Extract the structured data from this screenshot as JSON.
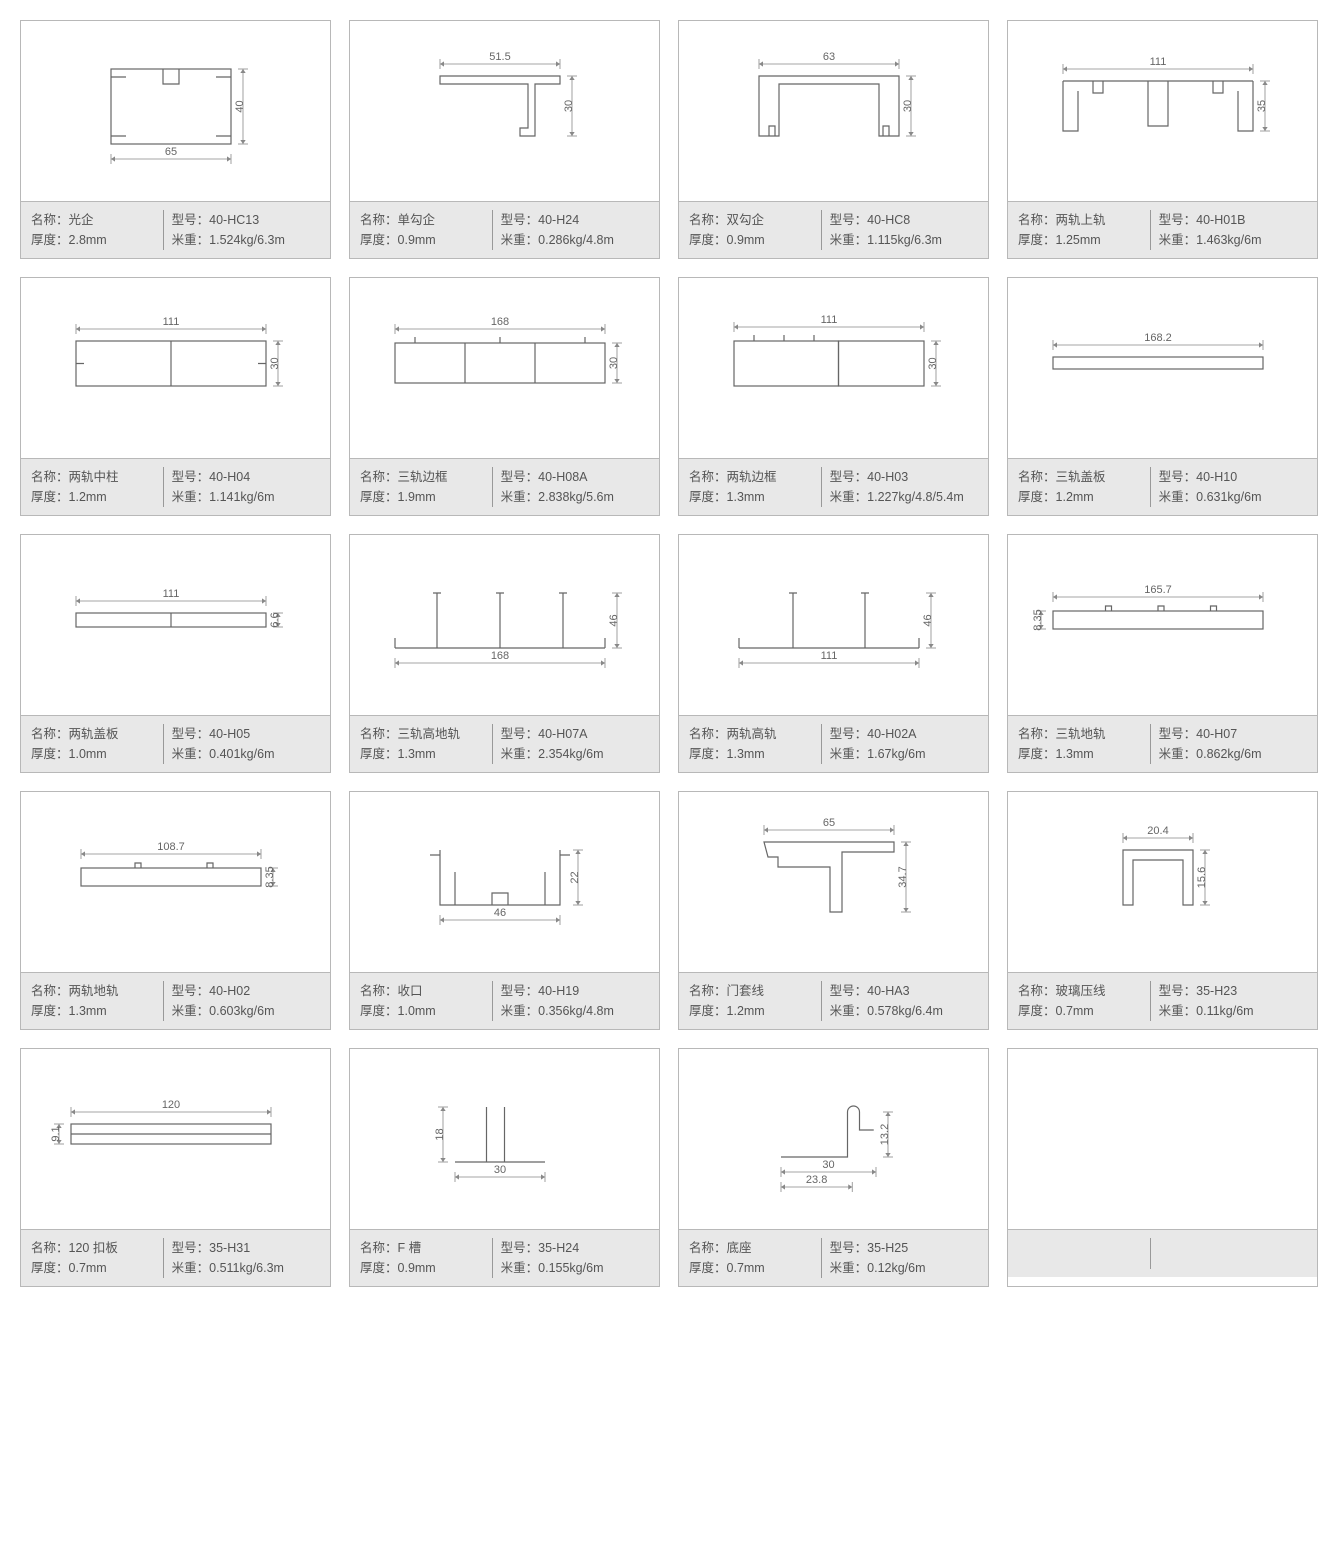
{
  "labels": {
    "name": "名称：",
    "thickness": "厚度：",
    "model": "型号：",
    "weight": "米重："
  },
  "colors": {
    "border": "#b8b8b8",
    "info_bg": "#e8e8e8",
    "stroke": "#666666",
    "dim": "#888888",
    "text": "#555555"
  },
  "items": [
    {
      "name": "光企",
      "thickness": "2.8mm",
      "model": "40-HC13",
      "weight": "1.524kg/6.3m",
      "dims": {
        "w": "65",
        "h": "40"
      },
      "shape": "rect-complex",
      "sw": 120,
      "sh": 75
    },
    {
      "name": "单勾企",
      "thickness": "0.9mm",
      "model": "40-H24",
      "weight": "0.286kg/4.8m",
      "dims": {
        "w": "51.5",
        "h": "30"
      },
      "shape": "hook-single",
      "sw": 120,
      "sh": 60
    },
    {
      "name": "双勾企",
      "thickness": "0.9mm",
      "model": "40-HC8",
      "weight": "1.115kg/6.3m",
      "dims": {
        "w": "63",
        "h": "30"
      },
      "shape": "hook-double",
      "sw": 140,
      "sh": 60
    },
    {
      "name": "两轨上轨",
      "thickness": "1.25mm",
      "model": "40-H01B",
      "weight": "1.463kg/6m",
      "dims": {
        "w": "111",
        "h": "35"
      },
      "shape": "track-top-2",
      "sw": 190,
      "sh": 50
    },
    {
      "name": "两轨中柱",
      "thickness": "1.2mm",
      "model": "40-H04",
      "weight": "1.141kg/6m",
      "dims": {
        "w": "111",
        "h": "30"
      },
      "shape": "rect-divided",
      "sw": 190,
      "sh": 45
    },
    {
      "name": "三轨边框",
      "thickness": "1.9mm",
      "model": "40-H08A",
      "weight": "2.838kg/5.6m",
      "dims": {
        "w": "168",
        "h": "30"
      },
      "shape": "frame-3",
      "sw": 210,
      "sh": 40
    },
    {
      "name": "两轨边框",
      "thickness": "1.3mm",
      "model": "40-H03",
      "weight": "1.227kg/4.8/5.4m",
      "dims": {
        "w": "111",
        "h": "30"
      },
      "shape": "frame-2",
      "sw": 190,
      "sh": 45
    },
    {
      "name": "三轨盖板",
      "thickness": "1.2mm",
      "model": "40-H10",
      "weight": "0.631kg/6m",
      "dims": {
        "w": "168.2",
        "h": ""
      },
      "shape": "flat-plate",
      "sw": 210,
      "sh": 12
    },
    {
      "name": "两轨盖板",
      "thickness": "1.0mm",
      "model": "40-H05",
      "weight": "0.401kg/6m",
      "dims": {
        "w": "111",
        "h": "6.6"
      },
      "shape": "flat-plate-2",
      "sw": 190,
      "sh": 14
    },
    {
      "name": "三轨高地轨",
      "thickness": "1.3mm",
      "model": "40-H07A",
      "weight": "2.354kg/6m",
      "dims": {
        "w": "168",
        "h": "46"
      },
      "shape": "track-high-3",
      "sw": 210,
      "sh": 55
    },
    {
      "name": "两轨高轨",
      "thickness": "1.3mm",
      "model": "40-H02A",
      "weight": "1.67kg/6m",
      "dims": {
        "w": "111",
        "h": "46"
      },
      "shape": "track-high-2",
      "sw": 180,
      "sh": 55
    },
    {
      "name": "三轨地轨",
      "thickness": "1.3mm",
      "model": "40-H07",
      "weight": "0.862kg/6m",
      "dims": {
        "w": "165.7",
        "h": "8.35"
      },
      "shape": "track-low-3",
      "sw": 210,
      "sh": 18
    },
    {
      "name": "两轨地轨",
      "thickness": "1.3mm",
      "model": "40-H02",
      "weight": "0.603kg/6m",
      "dims": {
        "w": "108.7",
        "h": "8.35"
      },
      "shape": "track-low-2",
      "sw": 180,
      "sh": 18
    },
    {
      "name": "收口",
      "thickness": "1.0mm",
      "model": "40-H19",
      "weight": "0.356kg/4.8m",
      "dims": {
        "w": "46",
        "h": "22"
      },
      "shape": "closure",
      "sw": 120,
      "sh": 55
    },
    {
      "name": "门套线",
      "thickness": "1.2mm",
      "model": "40-HA3",
      "weight": "0.578kg/6.4m",
      "dims": {
        "w": "65",
        "h": "34.7"
      },
      "shape": "door-trim",
      "sw": 130,
      "sh": 70
    },
    {
      "name": "玻璃压线",
      "thickness": "0.7mm",
      "model": "35-H23",
      "weight": "0.11kg/6m",
      "dims": {
        "w": "20.4",
        "h": "15.6"
      },
      "shape": "glass-bead",
      "sw": 70,
      "sh": 55
    },
    {
      "name": "120 扣板",
      "thickness": "0.7mm",
      "model": "35-H31",
      "weight": "0.511kg/6.3m",
      "dims": {
        "w": "120",
        "h": "9.1"
      },
      "shape": "clip-plate",
      "sw": 200,
      "sh": 20
    },
    {
      "name": "F 槽",
      "thickness": "0.9mm",
      "model": "35-H24",
      "weight": "0.155kg/6m",
      "dims": {
        "w": "30",
        "h": "18"
      },
      "shape": "f-slot",
      "sw": 90,
      "sh": 55
    },
    {
      "name": "底座",
      "thickness": "0.7mm",
      "model": "35-H25",
      "weight": "0.12kg/6m",
      "dims": {
        "w": "30",
        "w2": "23.8",
        "h": "13.2"
      },
      "shape": "base",
      "sw": 95,
      "sh": 45
    },
    {
      "name": "",
      "thickness": "",
      "model": "",
      "weight": "",
      "dims": {},
      "shape": "empty",
      "sw": 0,
      "sh": 0
    }
  ]
}
